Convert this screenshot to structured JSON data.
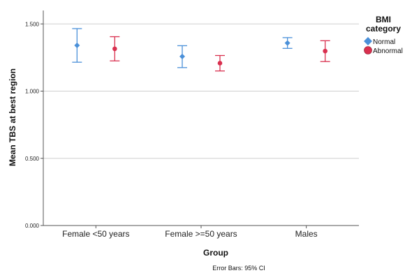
{
  "chart_data": {
    "type": "scatter",
    "subtype": "error-bar",
    "categories": [
      "Female <50 years",
      "Female >=50 years",
      "Males"
    ],
    "xlabel": "Group",
    "ylabel": "Mean TBS at best region",
    "ylim": [
      0,
      1.6
    ],
    "yticks": [
      "0.000",
      "0.500",
      "1.000",
      "1.500"
    ],
    "ytick_values": [
      0,
      0.5,
      1.0,
      1.5
    ],
    "grid": true,
    "legend": {
      "title_lines": [
        "BMI",
        "category"
      ],
      "placement": "right"
    },
    "series": [
      {
        "name": "Normal",
        "marker": "diamond",
        "color": "#4a90d9",
        "values": [
          1.34,
          1.258,
          1.358
        ],
        "ci_low": [
          1.215,
          1.175,
          1.318
        ],
        "ci_high": [
          1.465,
          1.338,
          1.398
        ]
      },
      {
        "name": "Abnormal",
        "marker": "circle",
        "color": "#d9304f",
        "values": [
          1.315,
          1.208,
          1.298
        ],
        "ci_low": [
          1.225,
          1.15,
          1.22
        ],
        "ci_high": [
          1.405,
          1.265,
          1.375
        ]
      }
    ],
    "footnote": "Error Bars: 95% CI"
  }
}
